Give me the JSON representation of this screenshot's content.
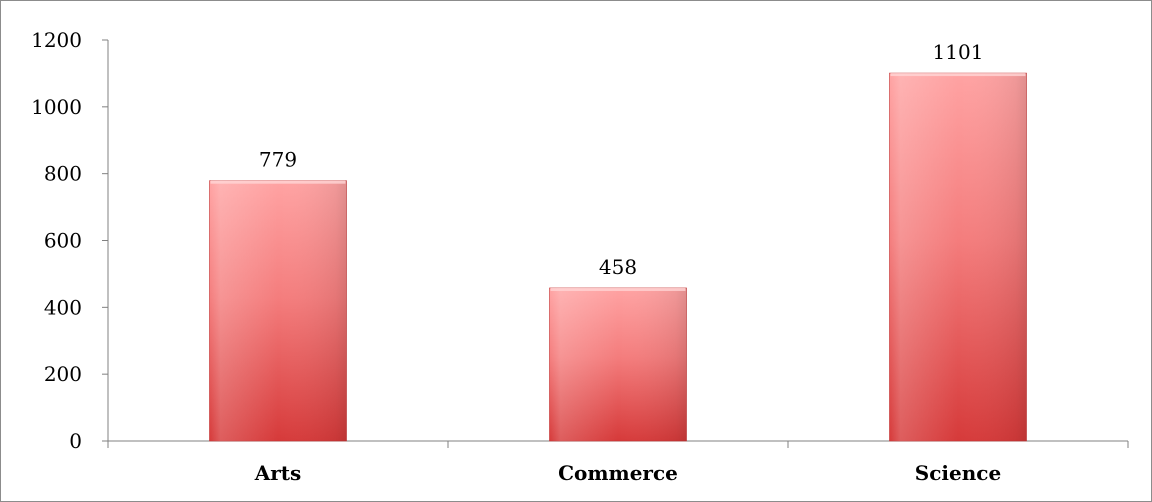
{
  "chart_data": {
    "type": "bar",
    "title": "",
    "xlabel": "",
    "ylabel": "",
    "categories": [
      "Arts",
      "Commerce",
      "Science"
    ],
    "values": [
      779,
      458,
      1101
    ],
    "data_labels": [
      "779",
      "458",
      "1101"
    ],
    "ylim": [
      0,
      1200
    ],
    "yticks": [
      0,
      200,
      400,
      600,
      800,
      1000,
      1200
    ],
    "ytick_labels": [
      "0",
      "200",
      "400",
      "600",
      "800",
      "1000",
      "1200"
    ],
    "grid": false,
    "legend": "none",
    "colors": {
      "bar_top": "#ffa3a3",
      "bar_bottom": "#d63a3a",
      "bar_edge": "#c23030",
      "axis": "#808080"
    }
  }
}
